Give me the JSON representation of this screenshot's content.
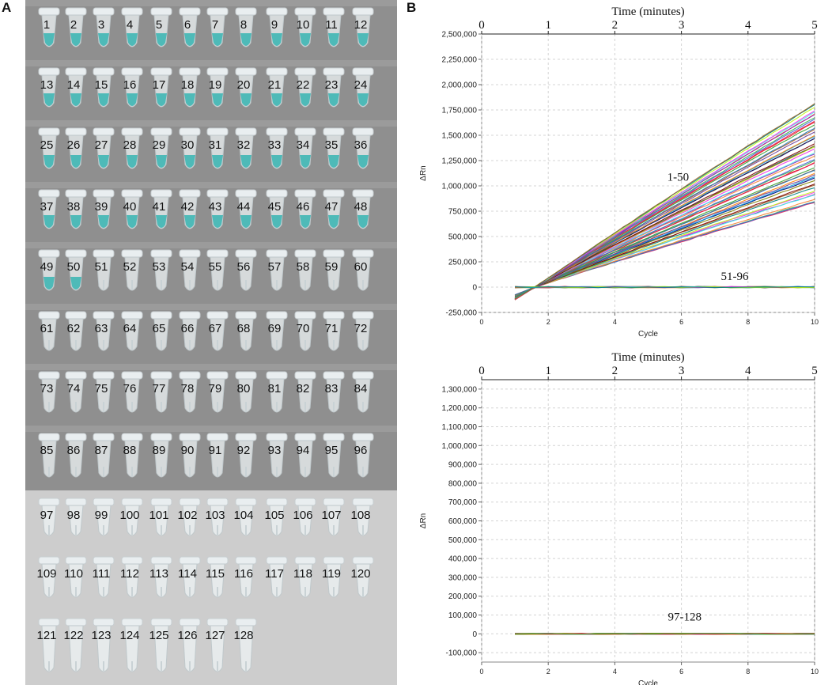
{
  "panels": {
    "a_label": "A",
    "b_label": "B"
  },
  "photo": {
    "tube_rows": [
      {
        "labels": [
          "1",
          "2",
          "3",
          "4",
          "5",
          "6",
          "7",
          "8",
          "9",
          "10",
          "11",
          "12"
        ],
        "positive": true
      },
      {
        "labels": [
          "13",
          "14",
          "15",
          "16",
          "17",
          "18",
          "19",
          "20",
          "21",
          "22",
          "23",
          "24"
        ],
        "positive": true
      },
      {
        "labels": [
          "25",
          "26",
          "27",
          "28",
          "29",
          "30",
          "31",
          "32",
          "33",
          "34",
          "35",
          "36"
        ],
        "positive": true
      },
      {
        "labels": [
          "37",
          "38",
          "39",
          "40",
          "41",
          "42",
          "43",
          "44",
          "45",
          "46",
          "47",
          "48"
        ],
        "positive": true
      },
      {
        "labels": [
          "49",
          "50",
          "51",
          "52",
          "53",
          "54",
          "55",
          "56",
          "57",
          "58",
          "59",
          "60"
        ],
        "positive_count": 2
      },
      {
        "labels": [
          "61",
          "62",
          "63",
          "64",
          "65",
          "66",
          "67",
          "68",
          "69",
          "70",
          "71",
          "72"
        ],
        "positive": false
      },
      {
        "labels": [
          "73",
          "74",
          "75",
          "76",
          "77",
          "78",
          "79",
          "80",
          "81",
          "82",
          "83",
          "84"
        ],
        "positive": false
      },
      {
        "labels": [
          "85",
          "86",
          "87",
          "88",
          "89",
          "90",
          "91",
          "92",
          "93",
          "94",
          "95",
          "96"
        ],
        "positive": false
      },
      {
        "labels": [
          "97",
          "98",
          "99",
          "100",
          "101",
          "102",
          "103",
          "104",
          "105",
          "106",
          "107",
          "108"
        ],
        "positive": false
      },
      {
        "labels": [
          "109",
          "110",
          "111",
          "112",
          "113",
          "114",
          "115",
          "116",
          "117",
          "118",
          "119",
          "120"
        ],
        "positive": false
      },
      {
        "labels": [
          "121",
          "122",
          "123",
          "124",
          "125",
          "126",
          "127",
          "128"
        ],
        "positive": false
      }
    ],
    "colors": {
      "dark_bg": "#8f8f8f",
      "light_bg": "#cdcdcd",
      "liquid_positive": "#3fb6b4"
    }
  },
  "chart_data": [
    {
      "type": "line",
      "top_axis_title": "Time (minutes)",
      "top_ticks": [
        "0",
        "1",
        "2",
        "3",
        "4",
        "5"
      ],
      "top_range": [
        0,
        5
      ],
      "xlabel": "Cycle",
      "ylabel": "ΔRn",
      "xlim": [
        0,
        10
      ],
      "x_ticks": [
        "0",
        "2",
        "4",
        "6",
        "8",
        "10"
      ],
      "ylim": [
        -250000,
        2500000
      ],
      "y_tick_values": [
        -250000,
        0,
        250000,
        500000,
        750000,
        1000000,
        1250000,
        1500000,
        1750000,
        2000000,
        2250000,
        2500000
      ],
      "y_ticks": [
        "-250,000",
        "0",
        "250,000",
        "500,000",
        "750,000",
        "1,000,000",
        "1,250,000",
        "1,500,000",
        "1,750,000",
        "2,000,000",
        "2,250,000",
        "2,500,000"
      ],
      "grid": true,
      "annotations": [
        {
          "text": "1-50",
          "x": 5.9,
          "y": 1050000
        },
        {
          "text": "51-96",
          "x": 7.6,
          "y": 70000
        }
      ],
      "series_groups": [
        {
          "name": "1-50",
          "count": 50,
          "x_start": 1,
          "y_start": -100000,
          "x_cross": 1.6,
          "x_end": 10,
          "y_end_min": 820000,
          "y_end_max": 1820000
        },
        {
          "name": "51-96",
          "count": 46,
          "x_start": 1,
          "x_end": 10,
          "y_level": 0
        }
      ],
      "palette": [
        "#e6194b",
        "#3cb44b",
        "#4363d8",
        "#f58231",
        "#911eb4",
        "#46f0f0",
        "#f032e6",
        "#bcf60c",
        "#008080",
        "#9a6324",
        "#800000",
        "#808000",
        "#000075",
        "#00a0e0",
        "#ff7f00",
        "#6a3d9a",
        "#b15928",
        "#1f78b4",
        "#33a02c",
        "#e31a1c"
      ]
    },
    {
      "type": "line",
      "top_axis_title": "Time (minutes)",
      "top_ticks": [
        "0",
        "1",
        "2",
        "3",
        "4",
        "5"
      ],
      "top_range": [
        0,
        5
      ],
      "xlabel": "Cycle",
      "ylabel": "ΔRn",
      "xlim": [
        0,
        10
      ],
      "x_ticks": [
        "0",
        "2",
        "4",
        "6",
        "8",
        "10"
      ],
      "ylim": [
        -150000,
        1350000
      ],
      "y_tick_values": [
        -100000,
        0,
        100000,
        200000,
        300000,
        400000,
        500000,
        600000,
        700000,
        800000,
        900000,
        1000000,
        1100000,
        1200000,
        1300000
      ],
      "y_ticks": [
        "-100,000",
        "0",
        "100,000",
        "200,000",
        "300,000",
        "400,000",
        "500,000",
        "600,000",
        "700,000",
        "800,000",
        "900,000",
        "1,000,000",
        "1,100,000",
        "1,200,000",
        "1,300,000"
      ],
      "grid": true,
      "annotations": [
        {
          "text": "97-128",
          "x": 6.1,
          "y": 70000
        }
      ],
      "series_groups": [
        {
          "name": "97-128",
          "count": 32,
          "x_start": 1,
          "x_end": 10,
          "y_level": 0
        }
      ],
      "palette": [
        "#e6194b",
        "#3cb44b",
        "#f58231",
        "#911eb4",
        "#9a6324",
        "#808000"
      ]
    }
  ]
}
